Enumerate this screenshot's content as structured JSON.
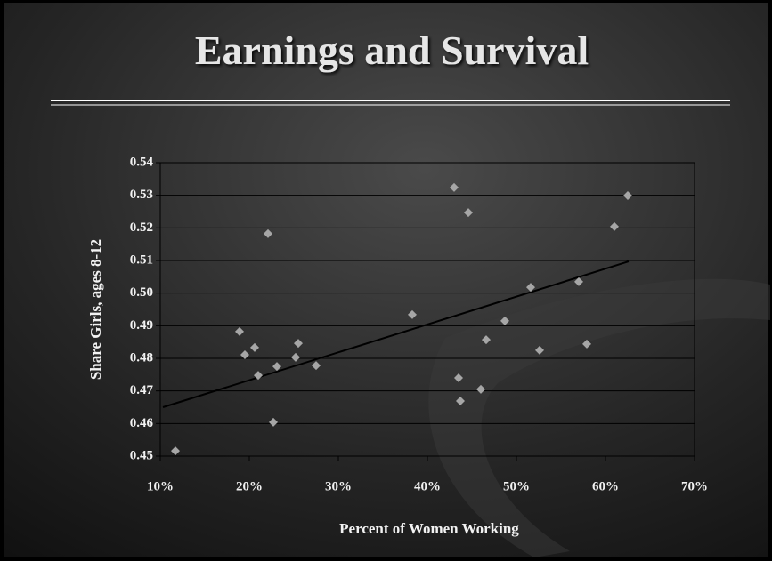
{
  "chart_data": {
    "type": "scatter",
    "title": "Earnings and Survival",
    "xlabel": "Percent of Women Working",
    "ylabel": "Share Girls, ages 8-12",
    "series": [
      {
        "color": "#a6a6a6",
        "x": [
          11.7,
          18.9,
          19.5,
          20.6,
          21.0,
          22.1,
          22.7,
          23.1,
          25.2,
          25.5,
          27.5,
          38.3,
          43.0,
          43.5,
          43.7,
          44.6,
          46.0,
          46.6,
          48.7,
          51.6,
          52.6,
          57.0,
          57.9,
          61.0,
          62.5
        ],
        "values": [
          0.4516,
          0.4882,
          0.4811,
          0.4833,
          0.4748,
          0.5182,
          0.4604,
          0.4775,
          0.4803,
          0.4846,
          0.4778,
          0.4934,
          0.5324,
          0.474,
          0.4669,
          0.5247,
          0.4705,
          0.4857,
          0.4915,
          0.5018,
          0.4825,
          0.5035,
          0.4844,
          0.5204,
          0.5299
        ]
      }
    ],
    "trendline": {
      "color": "#000000",
      "x": [
        10.3,
        62.6
      ],
      "values": [
        0.465,
        0.5097
      ]
    },
    "xlim": [
      10,
      70
    ],
    "xticks": [
      {
        "value": 10,
        "label": "10%"
      },
      {
        "value": 20,
        "label": "20%"
      },
      {
        "value": 30,
        "label": "30%"
      },
      {
        "value": 40,
        "label": "40%"
      },
      {
        "value": 50,
        "label": "50%"
      },
      {
        "value": 60,
        "label": "60%"
      },
      {
        "value": 70,
        "label": "70%"
      }
    ],
    "ylim": [
      0.45,
      0.54
    ],
    "yticks": [
      0.45,
      0.46,
      0.47,
      0.48,
      0.49,
      {
        "value": 0.5,
        "label": "0.50"
      },
      0.51,
      0.52,
      0.53,
      0.54
    ],
    "grid": true
  }
}
